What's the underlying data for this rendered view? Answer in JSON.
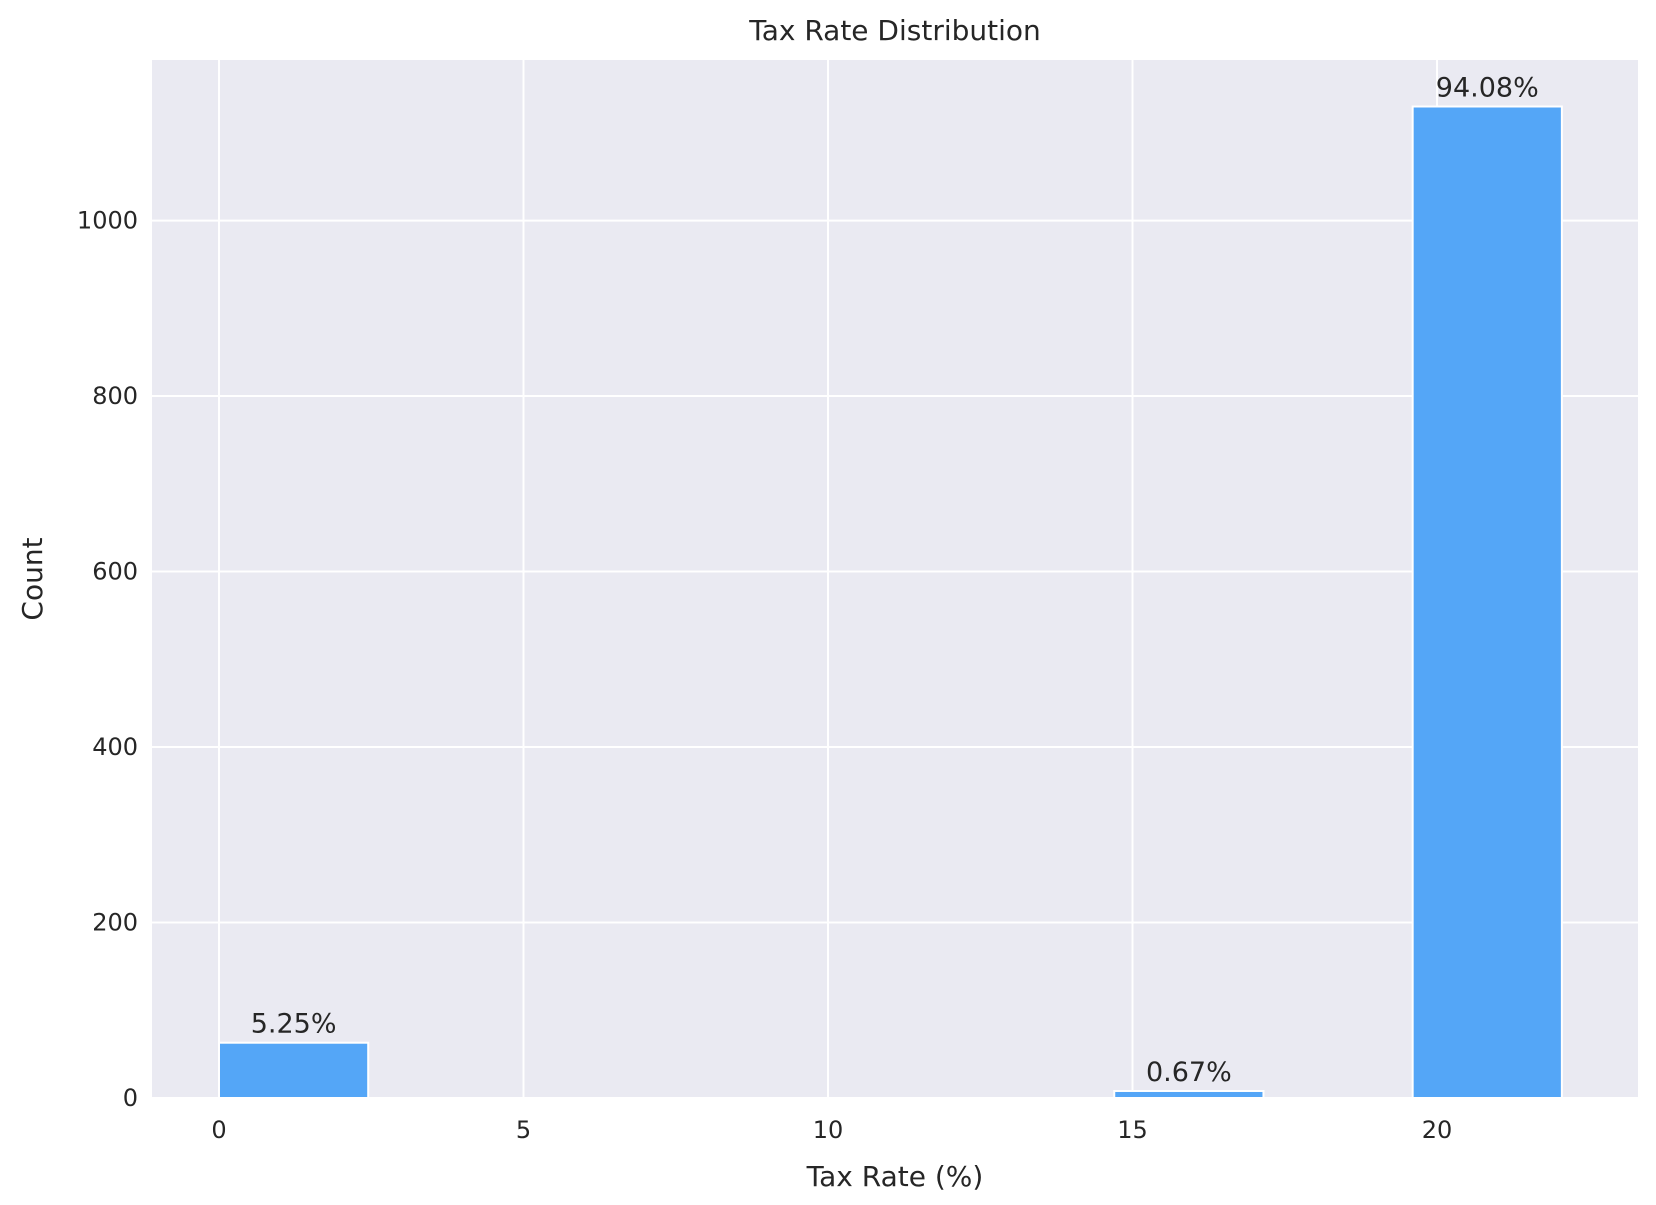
{
  "chart_data": {
    "type": "bar",
    "title": "Tax Rate Distribution",
    "xlabel": "Tax Rate (%)",
    "ylabel": "Count",
    "xlim": [
      -1.1,
      23.3
    ],
    "ylim": [
      0,
      1183
    ],
    "xticks": [
      0,
      5,
      10,
      15,
      20
    ],
    "yticks": [
      0,
      200,
      400,
      600,
      800,
      1000
    ],
    "grid": true,
    "bars": [
      {
        "x0": 0.0,
        "x1": 2.45,
        "value": 63,
        "label": "5.25%"
      },
      {
        "x0": 14.7,
        "x1": 17.15,
        "value": 8,
        "label": "0.67%"
      },
      {
        "x0": 19.6,
        "x1": 22.05,
        "value": 1130,
        "label": "94.08%"
      }
    ],
    "colors": {
      "bar": "#54a6f7",
      "plot_background": "#eaeaf2",
      "grid": "#ffffff",
      "text": "#262626"
    }
  }
}
